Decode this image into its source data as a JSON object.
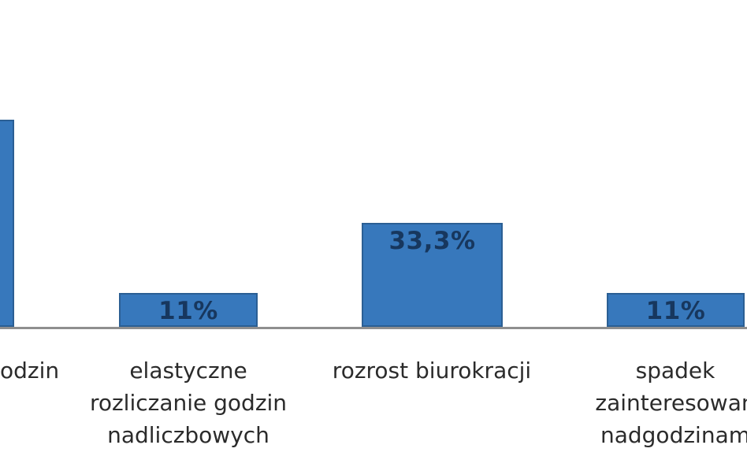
{
  "chart_data": {
    "type": "bar",
    "title": "",
    "xlabel": "",
    "ylabel": "",
    "ylim": [
      0,
      70
    ],
    "grid": false,
    "legend": false,
    "axis_visible": "x-baseline-only",
    "categories": [
      {
        "label_visible": "odzin",
        "clipped_left": true,
        "lines": [
          "odzin"
        ]
      },
      {
        "label_visible": "elastyczne rozliczanie godzin nadliczbowych",
        "lines": [
          "elastyczne",
          "rozliczanie godzin",
          "nadliczbowych"
        ]
      },
      {
        "label_visible": "rozrost biurokracji",
        "lines": [
          "rozrost biurokracji"
        ]
      },
      {
        "label_visible": "spadek zainteresowan nadgodzinam",
        "clipped_right": true,
        "lines": [
          "spadek",
          "zainteresowan",
          "nadgodzinam"
        ]
      }
    ],
    "values": [
      66.7,
      11,
      33.3,
      11
    ],
    "value_labels": [
      "",
      "11%",
      "33,3%",
      "11%"
    ],
    "colors": {
      "bar_fill": "#3778bc",
      "bar_border": "#2b5f94",
      "value_text": "#17375e",
      "category_text": "#2b2b2b",
      "axis_line": "#8f8f8f",
      "background": "#ffffff"
    }
  }
}
